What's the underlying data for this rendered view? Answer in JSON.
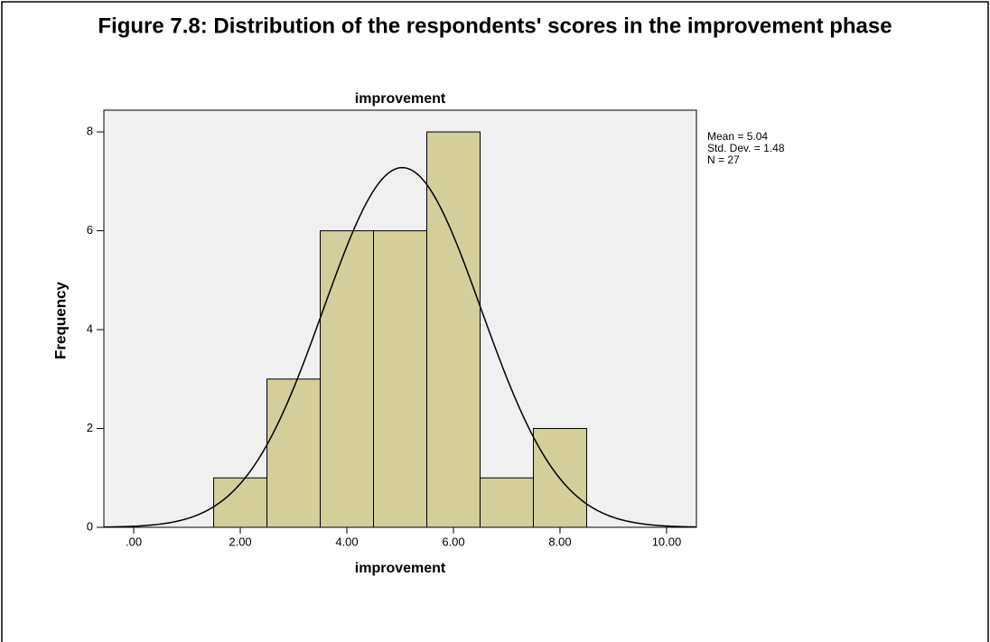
{
  "figure_title": "Figure 7.8: Distribution of the respondents' scores in the improvement phase",
  "chart_data": {
    "type": "histogram",
    "title": "improvement",
    "x_label": "improvement",
    "y_label": "Frequency",
    "bins": [
      1.5,
      2.5,
      3.5,
      4.5,
      5.5,
      6.5,
      7.5,
      8.5
    ],
    "values": [
      1,
      3,
      6,
      6,
      8,
      1,
      2
    ],
    "color": "#d3ce9a",
    "xlim": [
      -0.56,
      10.56
    ],
    "xticks": [
      {
        "value": 0,
        "label": ".00"
      },
      {
        "value": 2,
        "label": "2.00"
      },
      {
        "value": 4,
        "label": "4.00"
      },
      {
        "value": 6,
        "label": "6.00"
      },
      {
        "value": 8,
        "label": "8.00"
      },
      {
        "value": 10,
        "label": "10.00"
      }
    ],
    "ylim": [
      0,
      8.44
    ],
    "yticks": [
      0,
      2,
      4,
      6,
      8
    ],
    "normal_curve": true,
    "stats": {
      "values": [
        5.04,
        1.48,
        27
      ],
      "value_labels": [
        "Mean = 5.04",
        "Std. Dev. = 1.48",
        "N = 27"
      ]
    }
  }
}
